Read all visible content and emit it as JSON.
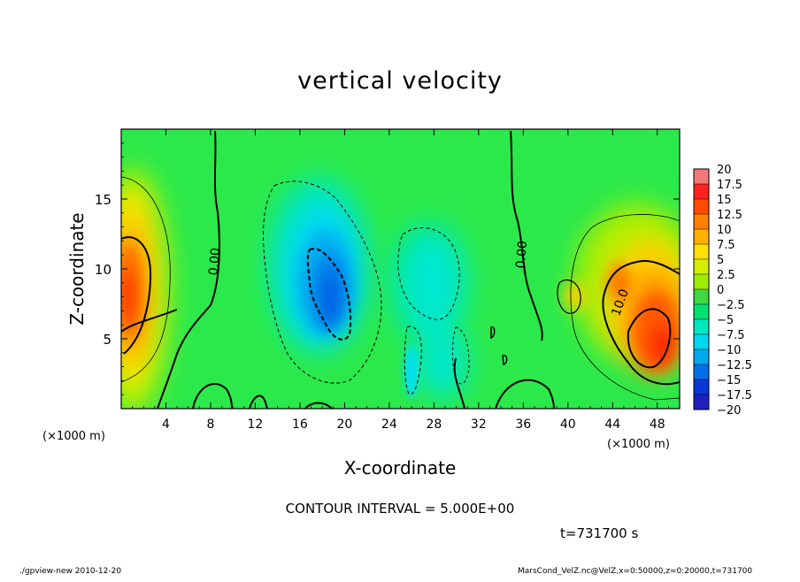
{
  "figure": {
    "title": "vertical velocity",
    "contour_interval": "CONTOUR INTERVAL = 5.000E+00",
    "time_label": "t=731700 s",
    "footer_left": "./gpview-new   2010-12-20",
    "footer_right": "MarsCond_VelZ.nc@VelZ,x=0:50000,z=0:20000,t=731700"
  },
  "chart_data": {
    "type": "heatmap",
    "title": "vertical velocity",
    "xlabel": "X-coordinate",
    "ylabel": "Z-coordinate",
    "x_unit": "(×1000 m)",
    "y_unit": "(×1000 m)",
    "xlim": [
      0,
      50
    ],
    "ylim": [
      0,
      20
    ],
    "x_ticks": [
      4,
      8,
      12,
      16,
      20,
      24,
      28,
      32,
      36,
      40,
      44,
      48
    ],
    "y_ticks": [
      5,
      10,
      15
    ],
    "contour_interval": 5.0,
    "contour_labels": [
      {
        "text": "0.00",
        "x": 8.7,
        "z": 10.5
      },
      {
        "text": "0.00",
        "x": 36.2,
        "z": 11.0
      },
      {
        "text": "10.0",
        "x": 45.0,
        "z": 7.5
      }
    ],
    "colorbar": {
      "levels": [
        "20",
        "17.5",
        "15",
        "12.5",
        "10",
        "7.5",
        "5",
        "2.5",
        "0",
        "−2.5",
        "−5",
        "−7.5",
        "−10",
        "−12.5",
        "−15",
        "−17.5",
        "−20"
      ],
      "colors": [
        "#f07878",
        "#ff2020",
        "#ff4a00",
        "#ff8000",
        "#ffb000",
        "#ffe000",
        "#d4f000",
        "#a0ec00",
        "#40d840",
        "#00e070",
        "#00e8c0",
        "#00d8f0",
        "#00a8f0",
        "#0070e8",
        "#0838d8",
        "#2020c0",
        "#6020b0"
      ]
    },
    "features": [
      {
        "kind": "updraft",
        "x": 1.0,
        "z": 8.5,
        "peak": 14
      },
      {
        "kind": "updraft",
        "x": 48.5,
        "z": 5.0,
        "peak": 15
      },
      {
        "kind": "downdraft",
        "x": 18.5,
        "z": 9.0,
        "peak": -12
      },
      {
        "kind": "downdraft",
        "x": 29.0,
        "z": 8.0,
        "peak": -6
      }
    ]
  }
}
